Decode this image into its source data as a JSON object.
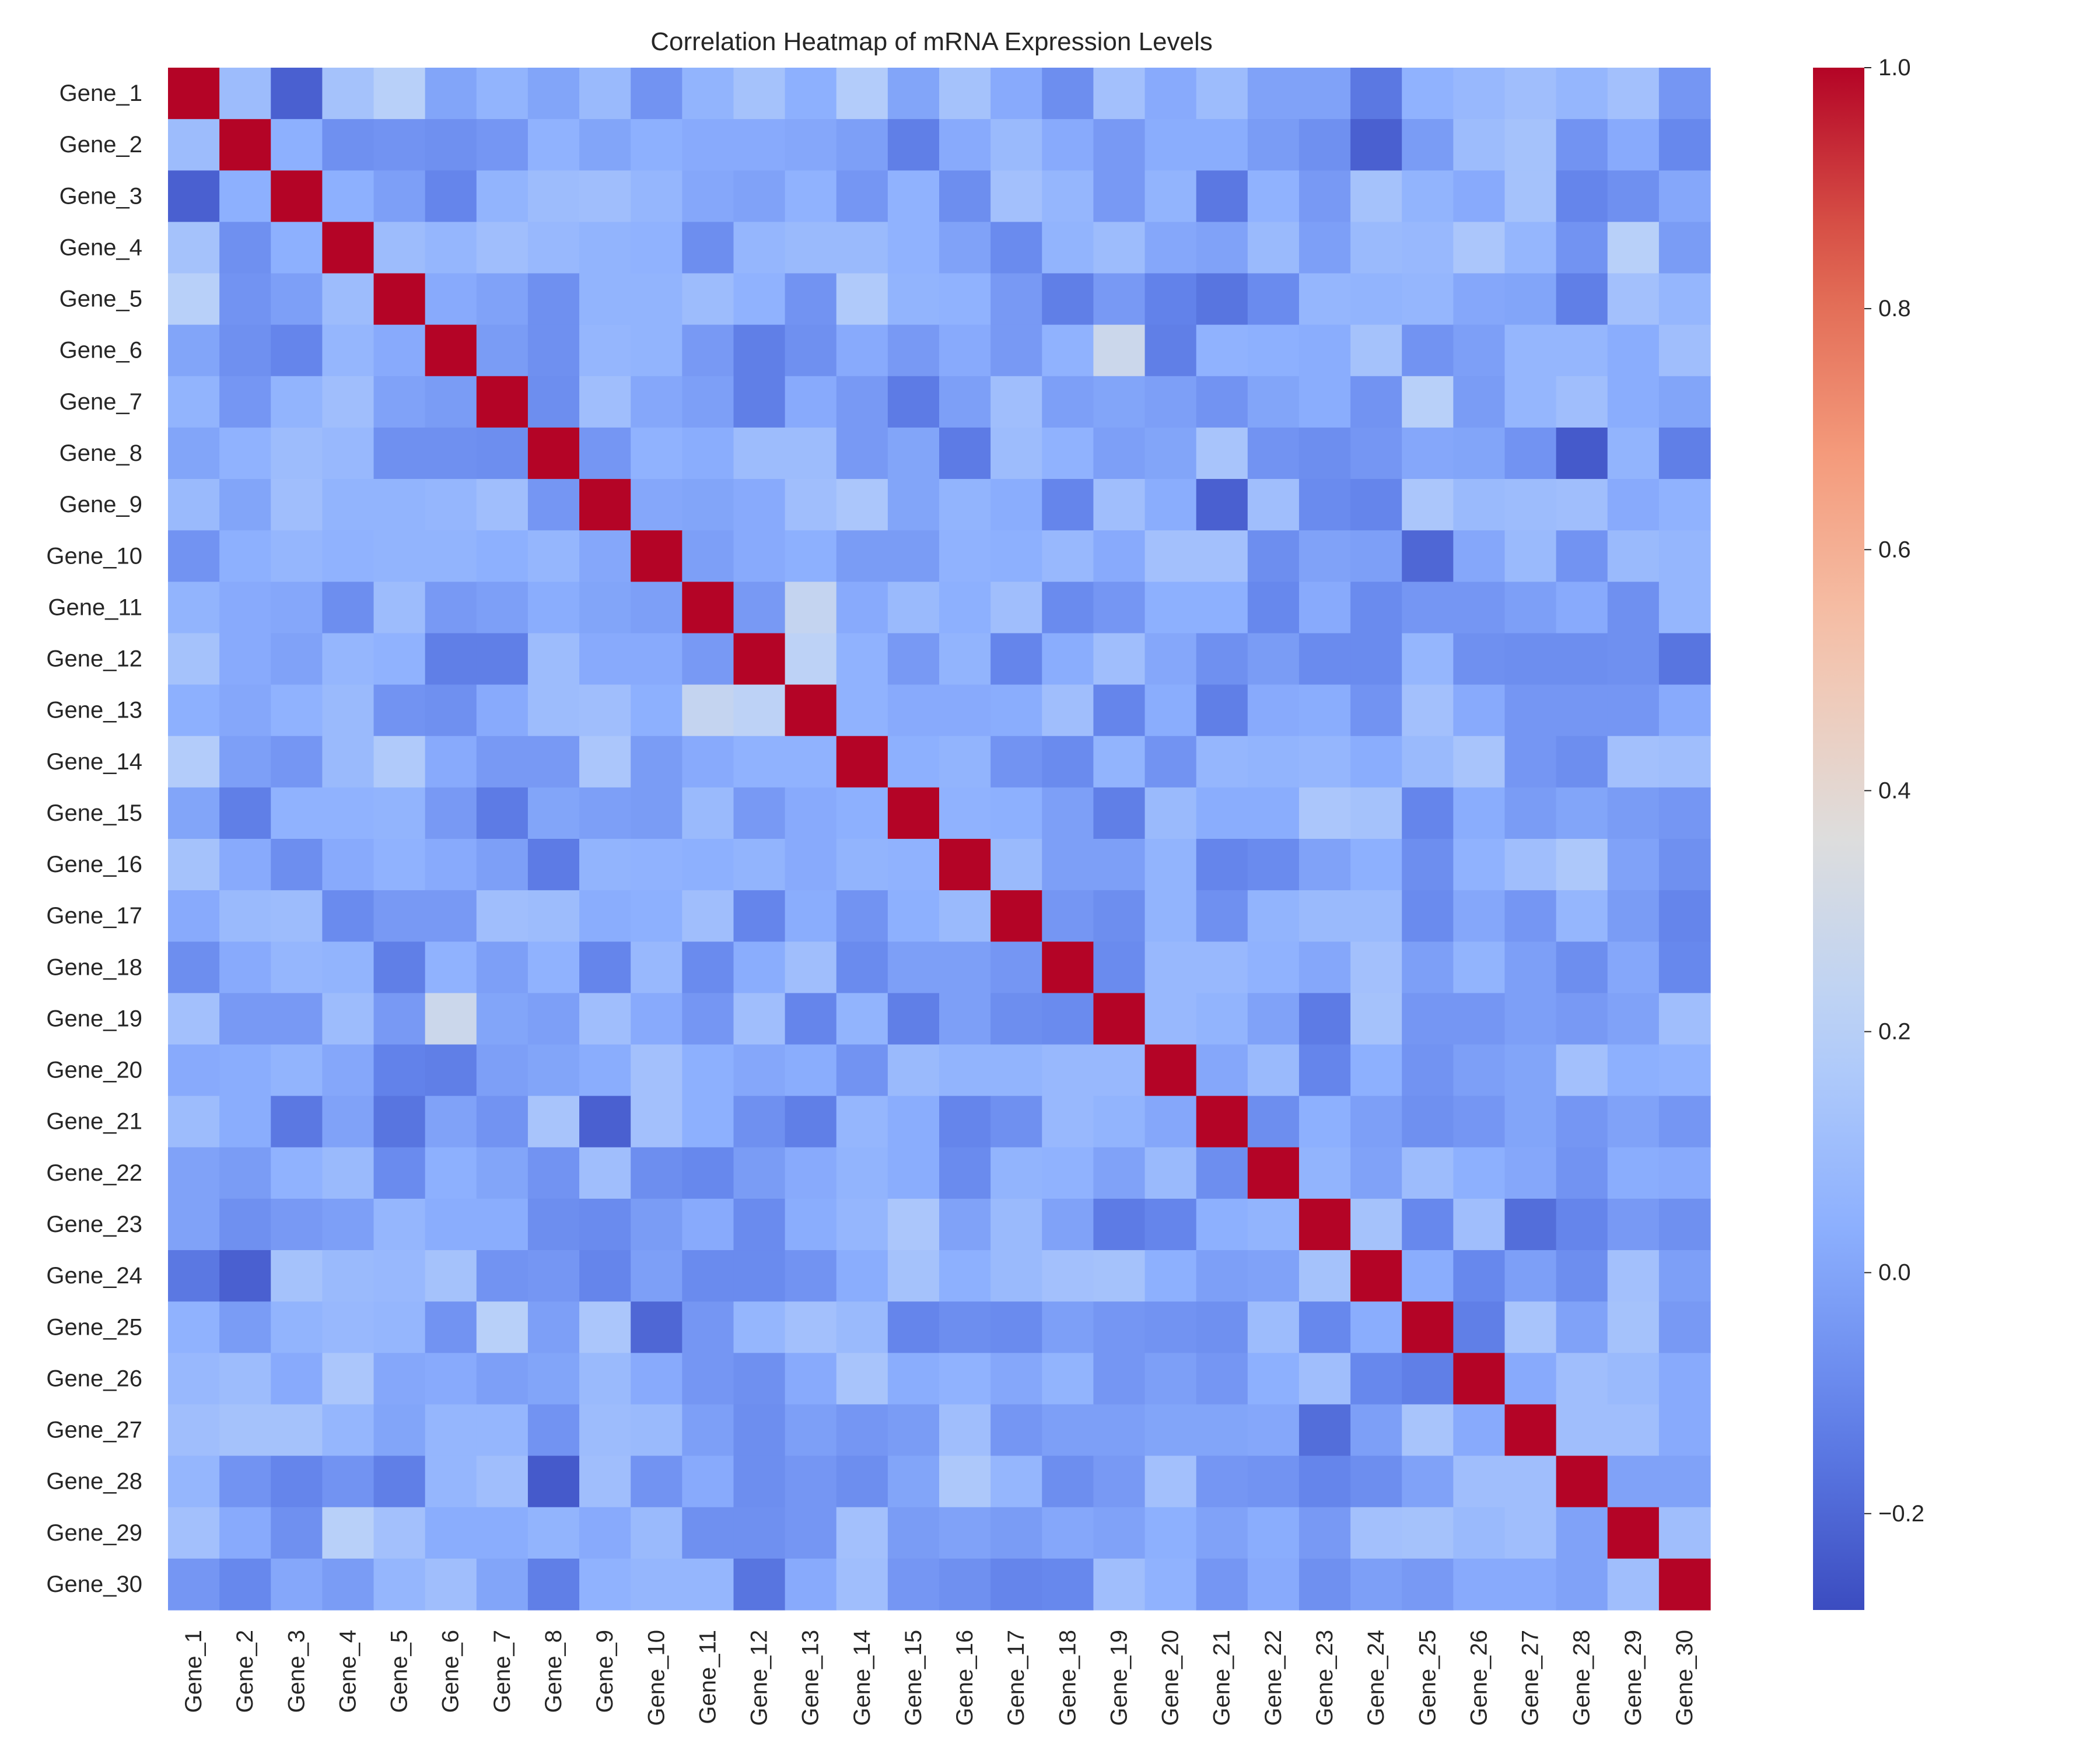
{
  "chart_data": {
    "type": "heatmap",
    "title": "Correlation Heatmap of mRNA Expression Levels",
    "xlabel": "",
    "ylabel": "",
    "labels": [
      "Gene_1",
      "Gene_2",
      "Gene_3",
      "Gene_4",
      "Gene_5",
      "Gene_6",
      "Gene_7",
      "Gene_8",
      "Gene_9",
      "Gene_10",
      "Gene_11",
      "Gene_12",
      "Gene_13",
      "Gene_14",
      "Gene_15",
      "Gene_16",
      "Gene_17",
      "Gene_18",
      "Gene_19",
      "Gene_20",
      "Gene_21",
      "Gene_22",
      "Gene_23",
      "Gene_24",
      "Gene_25",
      "Gene_26",
      "Gene_27",
      "Gene_28",
      "Gene_29",
      "Gene_30"
    ],
    "matrix": [
      [
        1.0,
        0.1,
        -0.22,
        0.13,
        0.2,
        0.0,
        0.06,
        0.0,
        0.09,
        -0.06,
        0.06,
        0.13,
        0.04,
        0.18,
        0.0,
        0.13,
        0.02,
        -0.08,
        0.12,
        0.02,
        0.1,
        -0.01,
        -0.01,
        -0.15,
        0.05,
        0.08,
        0.11,
        0.07,
        0.12,
        -0.05
      ],
      [
        0.1,
        1.0,
        0.04,
        -0.07,
        -0.06,
        -0.07,
        -0.05,
        0.05,
        0.0,
        0.04,
        0.02,
        0.02,
        0.01,
        -0.02,
        -0.13,
        0.02,
        0.09,
        0.02,
        -0.04,
        0.03,
        0.03,
        -0.03,
        -0.07,
        -0.22,
        -0.03,
        0.1,
        0.13,
        -0.06,
        0.02,
        -0.1
      ],
      [
        -0.22,
        0.04,
        1.0,
        0.04,
        -0.02,
        -0.11,
        0.06,
        0.1,
        0.11,
        0.07,
        0.01,
        -0.01,
        0.05,
        -0.05,
        0.05,
        -0.08,
        0.12,
        0.07,
        -0.04,
        0.06,
        -0.15,
        0.05,
        -0.04,
        0.13,
        0.06,
        0.02,
        0.13,
        -0.11,
        -0.07,
        0.01
      ],
      [
        0.13,
        -0.07,
        0.04,
        1.0,
        0.1,
        0.07,
        0.11,
        0.08,
        0.06,
        0.05,
        -0.08,
        0.07,
        0.09,
        0.09,
        0.05,
        -0.01,
        -0.09,
        0.06,
        0.1,
        0.01,
        -0.01,
        0.09,
        -0.02,
        0.09,
        0.08,
        0.15,
        0.07,
        -0.06,
        0.2,
        -0.03
      ],
      [
        0.2,
        -0.06,
        -0.02,
        0.1,
        1.0,
        0.02,
        -0.01,
        -0.07,
        0.06,
        0.06,
        0.1,
        0.05,
        -0.06,
        0.17,
        0.06,
        0.05,
        -0.04,
        -0.13,
        -0.04,
        -0.12,
        -0.16,
        -0.09,
        0.07,
        0.06,
        0.07,
        0.01,
        0.0,
        -0.13,
        0.12,
        0.07
      ],
      [
        0.0,
        -0.07,
        -0.11,
        0.07,
        0.02,
        1.0,
        -0.03,
        -0.07,
        0.07,
        0.06,
        -0.04,
        -0.13,
        -0.07,
        0.02,
        -0.04,
        0.02,
        -0.04,
        0.05,
        0.28,
        -0.13,
        0.05,
        0.04,
        0.03,
        0.13,
        -0.06,
        -0.02,
        0.07,
        0.07,
        0.03,
        0.11
      ],
      [
        0.06,
        -0.05,
        0.06,
        0.11,
        -0.01,
        -0.03,
        1.0,
        -0.08,
        0.11,
        0.01,
        -0.02,
        -0.13,
        0.02,
        -0.04,
        -0.14,
        -0.02,
        0.11,
        -0.02,
        0.0,
        -0.02,
        -0.06,
        0.0,
        0.03,
        -0.06,
        0.2,
        -0.03,
        0.07,
        0.11,
        0.03,
        0.0
      ],
      [
        0.0,
        0.05,
        0.1,
        0.08,
        -0.07,
        -0.07,
        -0.08,
        1.0,
        -0.05,
        0.05,
        0.03,
        0.1,
        0.1,
        -0.04,
        0.0,
        -0.14,
        0.1,
        0.05,
        -0.02,
        0.0,
        0.14,
        -0.06,
        -0.08,
        -0.05,
        0.01,
        0.0,
        -0.06,
        -0.24,
        0.06,
        -0.13
      ],
      [
        0.09,
        0.0,
        0.11,
        0.06,
        0.06,
        0.07,
        0.11,
        -0.05,
        1.0,
        0.01,
        0.0,
        0.02,
        0.11,
        0.15,
        0.0,
        0.06,
        0.03,
        -0.11,
        0.11,
        0.03,
        -0.22,
        0.11,
        -0.09,
        -0.11,
        0.15,
        0.09,
        0.1,
        0.11,
        0.02,
        0.05
      ],
      [
        -0.06,
        0.04,
        0.07,
        0.05,
        0.06,
        0.06,
        0.04,
        0.07,
        0.01,
        1.0,
        -0.02,
        0.02,
        0.04,
        -0.03,
        -0.03,
        0.05,
        0.04,
        0.08,
        0.02,
        0.12,
        0.12,
        -0.08,
        -0.01,
        -0.02,
        -0.2,
        0.01,
        0.09,
        -0.06,
        0.09,
        0.07
      ],
      [
        0.06,
        0.02,
        0.01,
        -0.08,
        0.1,
        -0.04,
        -0.02,
        0.03,
        0.0,
        -0.02,
        1.0,
        -0.04,
        0.25,
        0.02,
        0.09,
        0.04,
        0.11,
        -0.09,
        -0.05,
        0.04,
        0.04,
        -0.1,
        0.02,
        -0.09,
        -0.05,
        -0.05,
        -0.02,
        0.02,
        -0.07,
        0.07
      ],
      [
        0.13,
        0.02,
        -0.01,
        0.07,
        0.05,
        -0.13,
        -0.13,
        0.1,
        0.02,
        0.02,
        -0.04,
        1.0,
        0.22,
        0.05,
        -0.04,
        0.06,
        -0.11,
        0.03,
        0.11,
        0.01,
        -0.07,
        -0.03,
        -0.09,
        -0.09,
        0.07,
        -0.07,
        -0.08,
        -0.08,
        -0.07,
        -0.16
      ],
      [
        0.04,
        0.01,
        0.05,
        0.09,
        -0.06,
        -0.07,
        0.02,
        0.1,
        0.11,
        0.04,
        0.25,
        0.22,
        1.0,
        0.05,
        0.02,
        0.02,
        0.03,
        0.11,
        -0.11,
        0.03,
        -0.13,
        0.02,
        0.03,
        -0.06,
        0.12,
        0.02,
        -0.05,
        -0.05,
        -0.05,
        0.02
      ],
      [
        0.18,
        -0.02,
        -0.05,
        0.09,
        0.17,
        0.02,
        -0.04,
        -0.04,
        0.15,
        -0.03,
        0.02,
        0.05,
        0.05,
        1.0,
        0.04,
        0.06,
        -0.06,
        -0.09,
        0.06,
        -0.06,
        0.07,
        0.06,
        0.07,
        0.03,
        0.09,
        0.14,
        -0.05,
        -0.08,
        0.12,
        0.11
      ],
      [
        0.0,
        -0.13,
        0.05,
        0.05,
        0.06,
        -0.04,
        -0.14,
        0.0,
        -0.02,
        -0.03,
        0.09,
        -0.04,
        0.02,
        0.04,
        1.0,
        0.05,
        0.04,
        -0.02,
        -0.13,
        0.09,
        0.03,
        0.03,
        0.15,
        0.13,
        -0.11,
        0.03,
        -0.03,
        0.0,
        -0.03,
        -0.05
      ],
      [
        0.13,
        0.02,
        -0.08,
        0.02,
        0.05,
        0.02,
        -0.02,
        -0.14,
        0.06,
        0.05,
        0.04,
        0.06,
        0.02,
        0.06,
        0.05,
        1.0,
        0.09,
        -0.02,
        -0.02,
        0.06,
        -0.11,
        -0.09,
        -0.01,
        0.04,
        -0.08,
        0.05,
        0.11,
        0.16,
        -0.01,
        -0.07
      ],
      [
        0.02,
        0.09,
        0.1,
        -0.09,
        -0.04,
        -0.04,
        0.11,
        0.1,
        0.03,
        0.04,
        0.11,
        -0.11,
        0.03,
        -0.06,
        0.04,
        0.09,
        1.0,
        -0.05,
        -0.08,
        0.06,
        -0.07,
        0.06,
        0.09,
        0.09,
        -0.09,
        0.01,
        -0.05,
        0.07,
        -0.03,
        -0.11
      ],
      [
        -0.08,
        0.02,
        0.07,
        0.06,
        -0.13,
        0.05,
        -0.02,
        0.05,
        -0.11,
        0.08,
        -0.09,
        0.03,
        0.11,
        -0.09,
        -0.02,
        -0.02,
        -0.05,
        1.0,
        -0.09,
        0.08,
        0.08,
        0.05,
        0.01,
        0.12,
        -0.02,
        0.06,
        -0.02,
        -0.08,
        0.01,
        -0.1
      ],
      [
        0.12,
        -0.04,
        -0.04,
        0.1,
        -0.04,
        0.28,
        0.0,
        -0.02,
        0.11,
        0.02,
        -0.05,
        0.11,
        -0.11,
        0.06,
        -0.13,
        -0.02,
        -0.08,
        -0.09,
        1.0,
        0.08,
        0.06,
        -0.01,
        -0.14,
        0.13,
        -0.05,
        -0.05,
        -0.02,
        -0.04,
        -0.01,
        0.11
      ],
      [
        0.02,
        0.03,
        0.06,
        0.01,
        -0.12,
        -0.13,
        -0.02,
        0.0,
        0.03,
        0.12,
        0.04,
        0.01,
        0.03,
        -0.06,
        0.09,
        0.06,
        0.06,
        0.08,
        0.08,
        1.0,
        0.01,
        0.09,
        -0.11,
        0.04,
        -0.06,
        -0.02,
        0.0,
        0.12,
        0.04,
        0.05
      ],
      [
        0.1,
        0.03,
        -0.15,
        -0.01,
        -0.16,
        -0.01,
        -0.06,
        0.14,
        -0.22,
        0.12,
        0.04,
        -0.07,
        -0.13,
        0.07,
        0.03,
        -0.11,
        -0.07,
        0.08,
        0.06,
        0.01,
        1.0,
        -0.08,
        0.04,
        -0.02,
        -0.07,
        -0.05,
        0.0,
        -0.05,
        -0.01,
        -0.05
      ],
      [
        -0.01,
        -0.03,
        0.05,
        0.09,
        -0.09,
        0.04,
        0.0,
        -0.06,
        0.11,
        -0.08,
        -0.1,
        -0.03,
        0.02,
        0.06,
        0.03,
        -0.09,
        0.06,
        0.05,
        -0.01,
        0.09,
        -0.08,
        1.0,
        0.06,
        -0.01,
        0.1,
        0.04,
        0.01,
        -0.06,
        0.03,
        0.02
      ],
      [
        -0.01,
        -0.07,
        -0.04,
        -0.02,
        0.07,
        0.03,
        0.03,
        -0.08,
        -0.09,
        -0.03,
        0.02,
        -0.09,
        0.03,
        0.07,
        0.15,
        -0.01,
        0.09,
        -0.01,
        -0.14,
        -0.11,
        0.04,
        0.06,
        1.0,
        0.13,
        -0.1,
        0.11,
        -0.18,
        -0.11,
        -0.04,
        -0.07
      ],
      [
        -0.15,
        -0.22,
        0.13,
        0.09,
        0.08,
        0.13,
        -0.06,
        -0.05,
        -0.11,
        -0.02,
        -0.09,
        -0.09,
        -0.06,
        0.03,
        0.13,
        0.04,
        0.09,
        0.12,
        0.13,
        0.04,
        -0.02,
        -0.01,
        0.13,
        1.0,
        0.03,
        -0.1,
        -0.02,
        -0.08,
        0.12,
        -0.02
      ],
      [
        0.05,
        -0.03,
        0.06,
        0.08,
        0.07,
        -0.06,
        0.2,
        -0.02,
        0.15,
        -0.2,
        -0.05,
        0.07,
        0.12,
        0.09,
        -0.11,
        -0.08,
        -0.09,
        -0.02,
        -0.05,
        -0.06,
        -0.07,
        0.1,
        -0.1,
        0.03,
        1.0,
        -0.13,
        0.14,
        -0.01,
        0.13,
        -0.04
      ],
      [
        0.08,
        0.1,
        0.02,
        0.15,
        0.01,
        0.02,
        -0.02,
        0.0,
        0.09,
        0.02,
        -0.05,
        -0.07,
        0.02,
        0.14,
        0.03,
        0.05,
        0.01,
        0.06,
        -0.05,
        -0.02,
        -0.05,
        0.04,
        0.11,
        -0.1,
        -0.13,
        1.0,
        0.02,
        0.11,
        0.09,
        0.02
      ],
      [
        0.11,
        0.13,
        0.13,
        0.07,
        0.0,
        0.07,
        0.07,
        -0.06,
        0.1,
        0.09,
        -0.02,
        -0.08,
        -0.02,
        -0.05,
        -0.03,
        0.11,
        -0.05,
        -0.02,
        -0.02,
        0.0,
        0.0,
        0.01,
        -0.18,
        -0.02,
        0.14,
        0.02,
        1.0,
        0.11,
        0.11,
        0.02
      ],
      [
        0.07,
        -0.06,
        -0.11,
        -0.06,
        -0.13,
        0.07,
        0.11,
        -0.24,
        0.11,
        -0.06,
        0.02,
        -0.08,
        -0.05,
        -0.08,
        0.0,
        0.16,
        0.07,
        -0.08,
        -0.04,
        0.12,
        -0.05,
        -0.06,
        -0.11,
        -0.08,
        -0.01,
        0.11,
        0.11,
        1.0,
        -0.01,
        -0.01
      ],
      [
        0.12,
        0.02,
        -0.07,
        0.2,
        0.12,
        0.03,
        0.03,
        0.06,
        0.02,
        0.09,
        -0.07,
        -0.07,
        -0.05,
        0.12,
        -0.03,
        -0.01,
        -0.03,
        0.01,
        -0.01,
        0.04,
        -0.01,
        0.03,
        -0.04,
        0.12,
        0.13,
        0.09,
        0.11,
        -0.01,
        1.0,
        0.11
      ],
      [
        -0.05,
        -0.1,
        0.01,
        -0.03,
        0.07,
        0.11,
        0.0,
        -0.13,
        0.05,
        0.07,
        0.07,
        -0.16,
        0.02,
        0.11,
        -0.05,
        -0.07,
        -0.11,
        -0.1,
        0.11,
        0.05,
        -0.05,
        0.02,
        -0.07,
        -0.02,
        -0.04,
        0.02,
        0.02,
        -0.01,
        0.11,
        1.0
      ]
    ],
    "colormap": "coolwarm",
    "vmin": -0.28,
    "vmax": 1.0,
    "colorbar_ticks": [
      "−0.2",
      "0.0",
      "0.2",
      "0.4",
      "0.6",
      "0.8",
      "1.0"
    ],
    "colorbar_tick_values": [
      -0.2,
      0.0,
      0.2,
      0.4,
      0.6,
      0.8,
      1.0
    ],
    "grid": false,
    "legend": "colorbar-right"
  }
}
